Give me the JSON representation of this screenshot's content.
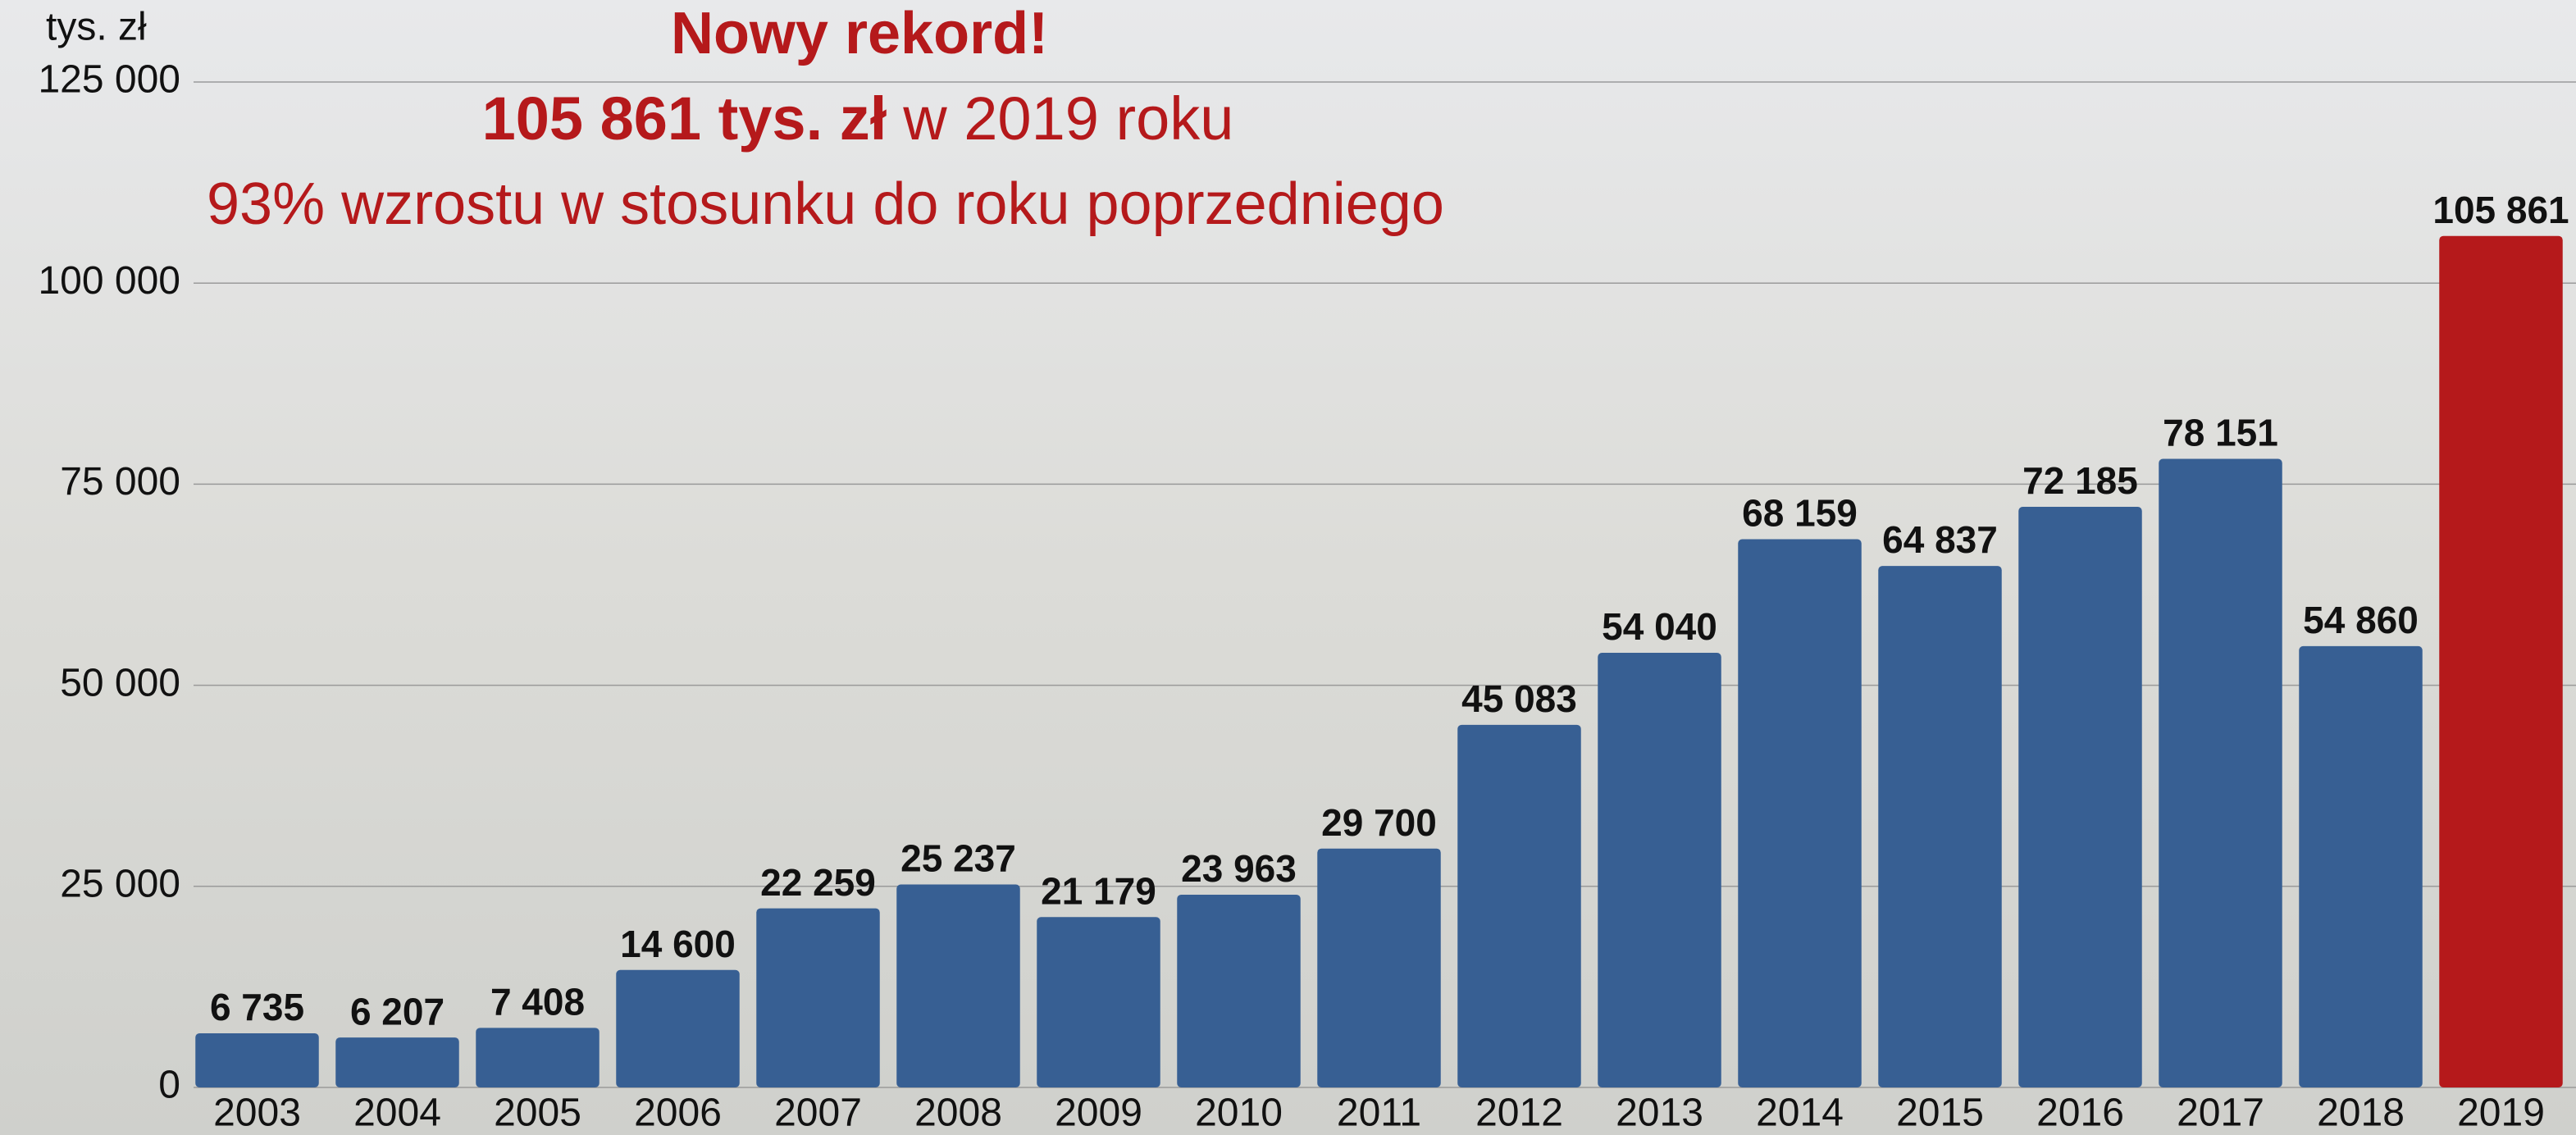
{
  "chart_data": {
    "type": "bar",
    "y_label": "tys. zł",
    "annotations": [
      "Nowy rekord!",
      "105 861 tys. zł",
      "w 2019 roku",
      "93% wzrostu w stosunku do roku poprzedniego"
    ],
    "categories": [
      "2003",
      "2004",
      "2005",
      "2006",
      "2007",
      "2008",
      "2009",
      "2010",
      "2011",
      "2012",
      "2013",
      "2014",
      "2015",
      "2016",
      "2017",
      "2018",
      "2019"
    ],
    "values": [
      6735,
      6207,
      7408,
      14600,
      22259,
      25237,
      21179,
      23963,
      29700,
      45083,
      54040,
      68159,
      64837,
      72185,
      78151,
      54860,
      105861
    ],
    "value_labels": [
      "6 735",
      "6 207",
      "7 408",
      "14 600",
      "22 259",
      "25 237",
      "21 179",
      "23 963",
      "29 700",
      "45 083",
      "54 040",
      "68 159",
      "64 837",
      "72 185",
      "78 151",
      "54 860",
      "105 861"
    ],
    "colors": [
      "#375f93",
      "#375f93",
      "#375f93",
      "#375f93",
      "#375f93",
      "#375f93",
      "#375f93",
      "#375f93",
      "#375f93",
      "#375f93",
      "#375f93",
      "#375f93",
      "#375f93",
      "#375f93",
      "#375f93",
      "#375f93",
      "#b5191b"
    ],
    "ylim": [
      0,
      125000
    ],
    "yticks": [
      0,
      {
        "value": 25000,
        "label": "25 000"
      },
      {
        "value": 50000,
        "label": "50 000"
      },
      {
        "value": 75000,
        "label": "75 000"
      },
      {
        "value": 100000,
        "label": "100 000"
      },
      {
        "value": 125000,
        "label": "125 000"
      }
    ],
    "grid": true
  }
}
